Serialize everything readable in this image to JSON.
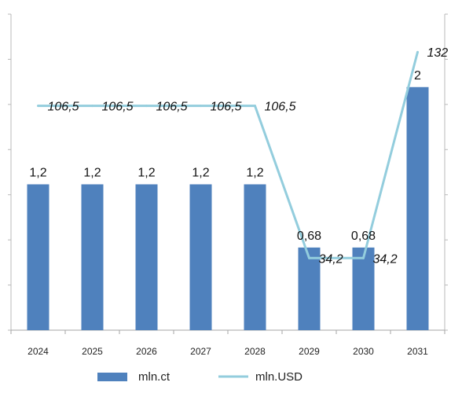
{
  "chart_data": {
    "type": "bar",
    "categories": [
      "2024",
      "2025",
      "2026",
      "2027",
      "2028",
      "2029",
      "2030",
      "2031"
    ],
    "series": [
      {
        "name": "mln.ct",
        "type": "bar",
        "axis": "left",
        "color": "#4F81BD",
        "values": [
          1.2,
          1.2,
          1.2,
          1.2,
          1.2,
          0.68,
          0.68,
          2
        ],
        "labels": [
          "1,2",
          "1,2",
          "1,2",
          "1,2",
          "1,2",
          "0,68",
          "0,68",
          "2"
        ]
      },
      {
        "name": "mln.USD",
        "type": "line",
        "axis": "right",
        "color": "#93CDDD",
        "values": [
          106.5,
          106.5,
          106.5,
          106.5,
          106.5,
          34.2,
          34.2,
          132
        ],
        "labels": [
          "106,5",
          "106,5",
          "106,5",
          "106,5",
          "106,5",
          "34,2",
          "34,2",
          "132"
        ]
      }
    ],
    "ylim_left": [
      0,
      2.6
    ],
    "ylim_right": [
      0,
      150
    ],
    "grid": false,
    "legend": "bottom",
    "title": "",
    "xlabel": "",
    "ylabel": ""
  }
}
